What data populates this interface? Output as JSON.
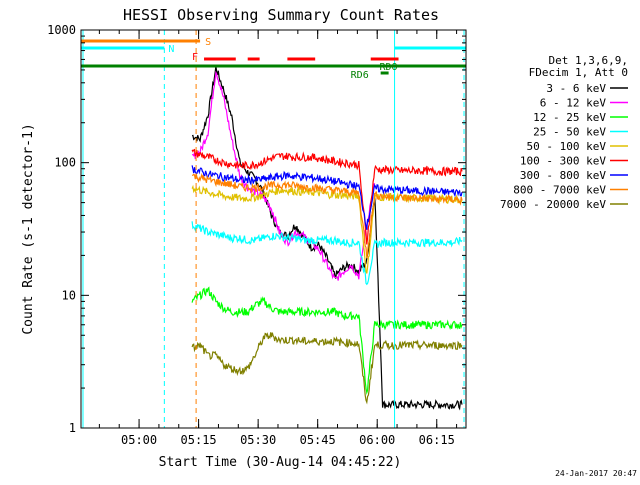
{
  "chart_data": {
    "type": "line",
    "title": "HESSI Observing Summary Count Rates",
    "xlabel": "Start Time (30-Aug-14 04:45:22)",
    "ylabel": "Count Rate (s-1 detector-1)",
    "yscale": "log",
    "ylim": [
      1,
      1000
    ],
    "xlim_minutes_after_start": [
      0,
      97
    ],
    "x_unit": "minutes after 04:45:22",
    "y_tick_labels": [
      "1",
      "10",
      "100",
      "1000"
    ],
    "y_tick_values": [
      1,
      10,
      100,
      1000
    ],
    "x_tick_labels": [
      "05:00",
      "05:15",
      "05:30",
      "05:45",
      "06:00",
      "06:15"
    ],
    "x_tick_minutes": [
      14.63,
      29.63,
      44.63,
      59.63,
      74.63,
      89.63
    ],
    "grid": false,
    "legend_position": "right",
    "legend_header": [
      "Det 1,3,6,9,",
      "FDecim 1, Att 0"
    ],
    "series": [
      {
        "name": "3 - 6 keV",
        "color": "#000000",
        "x": [
          28,
          30,
          32,
          34,
          36,
          38,
          40,
          42,
          44,
          46,
          48,
          50,
          52,
          54,
          56,
          58,
          60,
          62,
          64,
          66,
          68,
          70,
          72,
          74,
          76,
          78,
          80,
          82,
          84,
          86,
          88,
          90,
          92,
          94,
          96
        ],
        "y": [
          160,
          150,
          230,
          520,
          350,
          220,
          100,
          85,
          75,
          60,
          40,
          30,
          28,
          34,
          28,
          23,
          24,
          19,
          14,
          16,
          17,
          15,
          18,
          60,
          1.5,
          1.5,
          1.5,
          1.5,
          1.5,
          1.5,
          1.5,
          1.5,
          1.5,
          1.5,
          1.5
        ]
      },
      {
        "name": "6 - 12 keV",
        "color": "#ff00ff",
        "x": [
          28,
          30,
          32,
          34,
          36,
          38,
          40,
          42,
          44,
          46,
          48,
          50,
          52,
          54,
          56,
          58,
          60,
          62,
          64,
          66,
          68,
          70,
          72,
          74
        ],
        "y": [
          110,
          120,
          170,
          500,
          300,
          150,
          80,
          65,
          60,
          55,
          45,
          30,
          25,
          30,
          28,
          25,
          22,
          17,
          13,
          15,
          17,
          14,
          35,
          70
        ]
      },
      {
        "name": "12 - 25 keV",
        "color": "#00ff00",
        "x": [
          28,
          30,
          32,
          34,
          36,
          38,
          40,
          42,
          44,
          46,
          48,
          50,
          52,
          54,
          56,
          58,
          60,
          62,
          64,
          66,
          68,
          70,
          72,
          74,
          76,
          78,
          80,
          82,
          84,
          86,
          88,
          90,
          92,
          94,
          96
        ],
        "y": [
          9,
          10,
          11,
          9,
          8,
          7.5,
          7.5,
          7.5,
          8.5,
          9,
          8,
          7.5,
          7.5,
          7.5,
          7.5,
          7.5,
          7.5,
          7.5,
          7.5,
          7,
          7,
          7,
          1.8,
          6,
          6,
          6,
          6,
          6,
          6,
          6,
          6,
          6,
          6,
          6,
          6
        ]
      },
      {
        "name": "25 - 50 keV",
        "color": "#00ffff",
        "x": [
          28,
          30,
          32,
          34,
          36,
          38,
          40,
          42,
          44,
          46,
          48,
          50,
          52,
          54,
          56,
          58,
          60,
          62,
          64,
          66,
          68,
          70,
          72,
          74,
          76,
          78,
          80,
          82,
          84,
          86,
          88,
          90,
          92,
          94,
          96
        ],
        "y": [
          34,
          32,
          30,
          29,
          28,
          27,
          27,
          26,
          26,
          27,
          28,
          28,
          27,
          27,
          26,
          26,
          26,
          26,
          26,
          25,
          25,
          25,
          12,
          24,
          25,
          25,
          25,
          25,
          25,
          25,
          25,
          25,
          25,
          25,
          26
        ]
      },
      {
        "name": "50 - 100 keV",
        "color": "#e0c000",
        "x": [
          28,
          30,
          32,
          34,
          36,
          38,
          40,
          42,
          44,
          46,
          48,
          50,
          52,
          54,
          56,
          58,
          60,
          62,
          64,
          66,
          68,
          70,
          72,
          74,
          76,
          78,
          80,
          82,
          84,
          86,
          88,
          90,
          92,
          94,
          96
        ],
        "y": [
          65,
          62,
          60,
          58,
          56,
          55,
          54,
          54,
          55,
          57,
          60,
          62,
          62,
          61,
          60,
          60,
          59,
          58,
          57,
          57,
          56,
          56,
          14,
          55,
          55,
          55,
          54,
          54,
          54,
          54,
          54,
          53,
          53,
          53,
          52
        ]
      },
      {
        "name": "100 - 300 keV",
        "color": "#ff0000",
        "x": [
          28,
          30,
          32,
          34,
          36,
          38,
          40,
          42,
          44,
          46,
          48,
          50,
          52,
          54,
          56,
          58,
          60,
          62,
          64,
          66,
          68,
          70,
          72,
          74,
          76,
          78,
          80,
          82,
          84,
          86,
          88,
          90,
          92,
          94,
          96
        ],
        "y": [
          120,
          115,
          110,
          105,
          100,
          97,
          95,
          95,
          97,
          102,
          108,
          112,
          112,
          110,
          110,
          110,
          108,
          105,
          102,
          100,
          98,
          96,
          25,
          90,
          88,
          88,
          87,
          87,
          87,
          87,
          86,
          86,
          86,
          86,
          86
        ]
      },
      {
        "name": "300 - 800 keV",
        "color": "#0000ff",
        "x": [
          28,
          30,
          32,
          34,
          36,
          38,
          40,
          42,
          44,
          46,
          48,
          50,
          52,
          54,
          56,
          58,
          60,
          62,
          64,
          66,
          68,
          70,
          72,
          74,
          76,
          78,
          80,
          82,
          84,
          86,
          88,
          90,
          92,
          94,
          96
        ],
        "y": [
          90,
          86,
          82,
          80,
          78,
          76,
          74,
          74,
          74,
          75,
          77,
          79,
          80,
          79,
          78,
          77,
          76,
          74,
          72,
          70,
          68,
          66,
          33,
          64,
          63,
          63,
          62,
          62,
          61,
          61,
          61,
          60,
          60,
          60,
          60
        ]
      },
      {
        "name": "800 - 7000 keV",
        "color": "#ff8000",
        "x": [
          28,
          30,
          32,
          34,
          36,
          38,
          40,
          42,
          44,
          46,
          48,
          50,
          52,
          54,
          56,
          58,
          60,
          62,
          64,
          66,
          68,
          70,
          72,
          74,
          76,
          78,
          80,
          82,
          84,
          86,
          88,
          90,
          92,
          94,
          96
        ],
        "y": [
          80,
          77,
          74,
          72,
          70,
          68,
          66,
          65,
          65,
          66,
          67,
          68,
          68,
          67,
          66,
          65,
          64,
          63,
          62,
          61,
          60,
          59,
          20,
          57,
          56,
          55,
          55,
          54,
          54,
          54,
          53,
          53,
          53,
          53,
          52
        ]
      },
      {
        "name": "7000 - 20000 keV",
        "color": "#808000",
        "x": [
          28,
          30,
          32,
          34,
          36,
          38,
          40,
          42,
          44,
          46,
          48,
          50,
          52,
          54,
          56,
          58,
          60,
          62,
          64,
          66,
          68,
          70,
          72,
          74,
          76,
          78,
          80,
          82,
          84,
          86,
          88,
          90,
          92,
          94,
          96
        ],
        "y": [
          4,
          4.2,
          3.5,
          3.5,
          3,
          2.8,
          2.7,
          2.8,
          3.6,
          4.8,
          5,
          4.6,
          4.6,
          4.6,
          4.5,
          4.5,
          4.5,
          4.5,
          4.5,
          4.4,
          4.4,
          4.3,
          1.5,
          4.2,
          4.2,
          4.2,
          4.2,
          4.2,
          4.2,
          4.2,
          4.2,
          4.2,
          4.2,
          4.2,
          4.2
        ]
      }
    ],
    "flag_bars": [
      {
        "label": "S",
        "color": "#ff8000",
        "segments": [
          [
            0,
            30
          ]
        ]
      },
      {
        "label": "N",
        "color": "#00ffff",
        "segments": [
          [
            0,
            21
          ],
          [
            79,
            97
          ]
        ]
      },
      {
        "label": "F",
        "color": "#ff0000",
        "segments": [
          [
            31,
            39
          ],
          [
            42,
            45
          ],
          [
            52,
            59
          ],
          [
            73,
            80
          ]
        ]
      },
      {
        "label": "RDO",
        "color": "#008000",
        "segments": [
          [
            0,
            97
          ]
        ]
      },
      {
        "label": "RD6",
        "color": "#008000",
        "segments": [
          [
            75.5,
            77.5
          ]
        ]
      }
    ],
    "vlines": [
      {
        "x": 0.5,
        "color": "#00ffff",
        "style": "solid"
      },
      {
        "x": 21,
        "color": "#00ffff",
        "style": "dashed"
      },
      {
        "x": 29,
        "color": "#ff8000",
        "style": "dashed"
      },
      {
        "x": 79,
        "color": "#00ffff",
        "style": "solid"
      },
      {
        "x": 96.5,
        "color": "#00ffff",
        "style": "dashed"
      }
    ],
    "footer_date": "24-Jan-2017 20:47"
  }
}
